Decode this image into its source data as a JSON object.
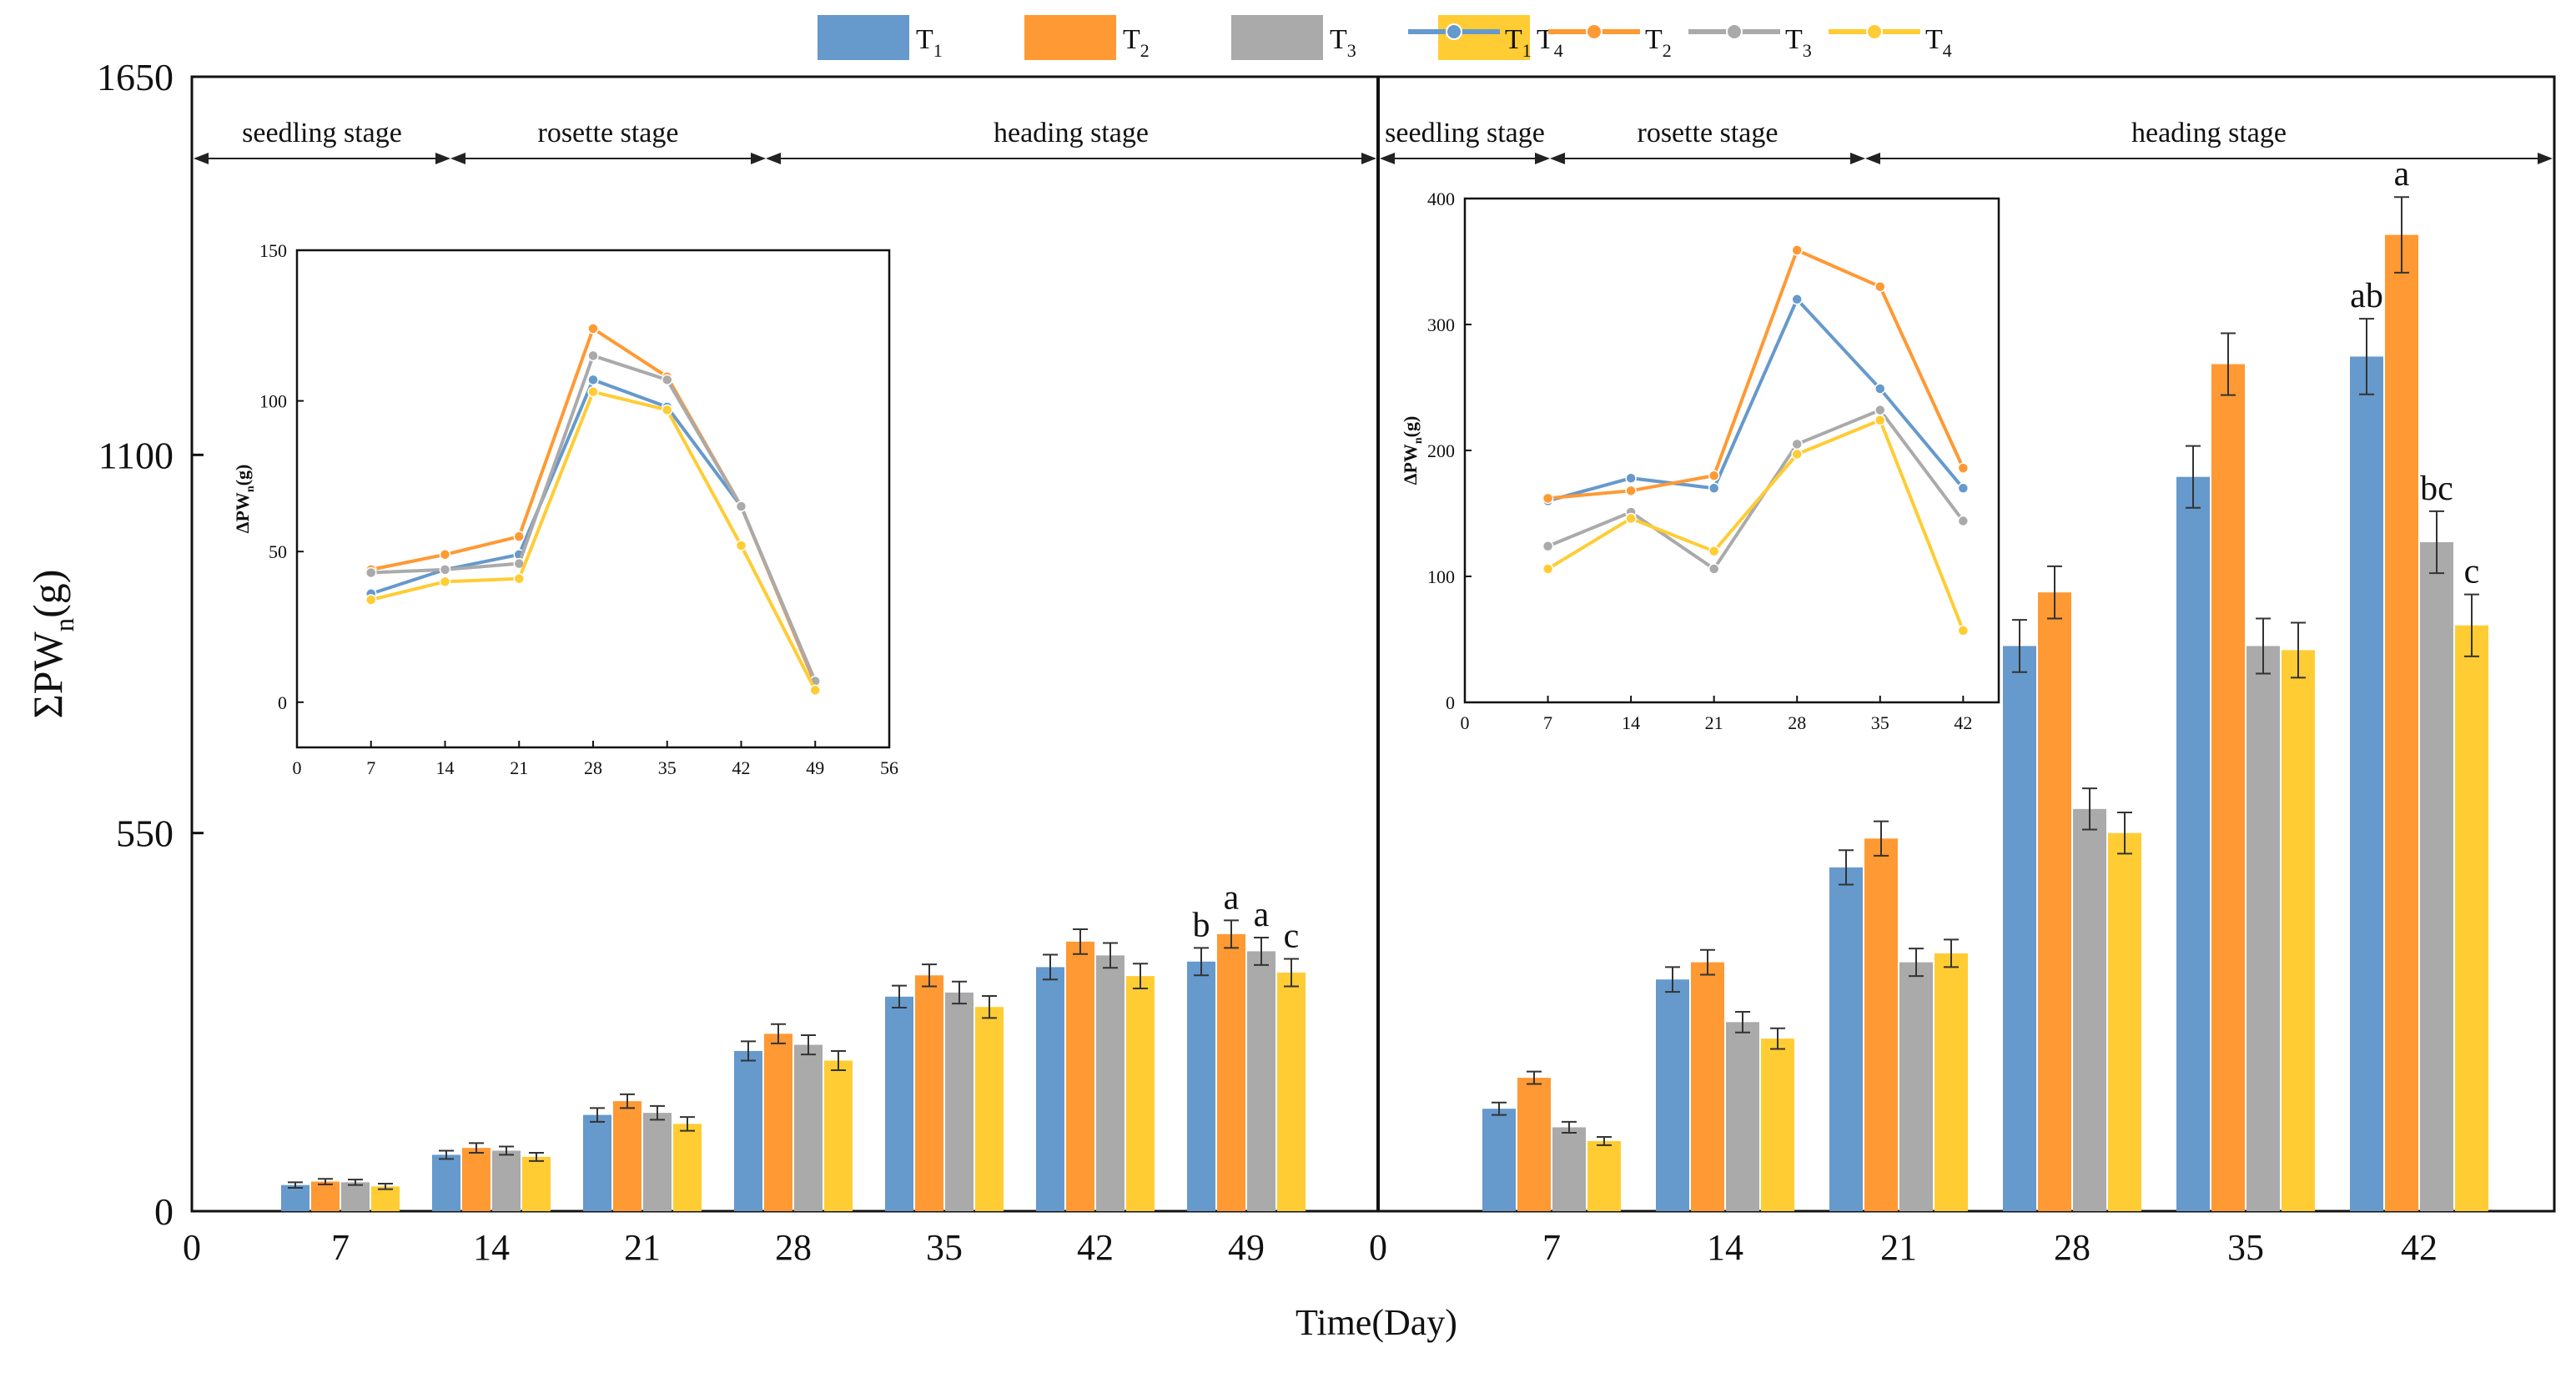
{
  "legend": {
    "bar_labels": [
      "T",
      "T",
      "T",
      "T"
    ],
    "line_labels": [
      "T",
      "T",
      "T",
      "T"
    ],
    "subscripts": [
      "1",
      "2",
      "3",
      "4"
    ]
  },
  "colors": {
    "T1": "#6699CC",
    "T2": "#FF9933",
    "T3": "#AAAAAA",
    "T4": "#FFCC33"
  },
  "chart_data": [
    {
      "type": "bar",
      "panel": "left",
      "ylabel_main": "ΣPW",
      "ylabel_sub": "n",
      "ylabel_tail": "(g)",
      "xlabel": "Time(Day)",
      "ylim": [
        0,
        1650
      ],
      "yticks": [
        "0",
        "550",
        "1100",
        "1650"
      ],
      "xticks": [
        "0",
        "7",
        "14",
        "21",
        "28",
        "35",
        "42",
        "49"
      ],
      "categories": [
        "7",
        "14",
        "21",
        "28",
        "35",
        "42",
        "49"
      ],
      "series": [
        {
          "name": "T1",
          "values": [
            38,
            82,
            140,
            233,
            312,
            355,
            363
          ],
          "errors": [
            4,
            6,
            10,
            14,
            16,
            18,
            20
          ]
        },
        {
          "name": "T2",
          "values": [
            43,
            92,
            160,
            258,
            343,
            392,
            403
          ],
          "errors": [
            4,
            7,
            10,
            14,
            16,
            18,
            20
          ]
        },
        {
          "name": "T3",
          "values": [
            42,
            88,
            143,
            242,
            318,
            372,
            378
          ],
          "errors": [
            4,
            6,
            10,
            14,
            16,
            18,
            20
          ]
        },
        {
          "name": "T4",
          "values": [
            36,
            79,
            127,
            219,
            297,
            342,
            347
          ],
          "errors": [
            4,
            6,
            10,
            14,
            16,
            18,
            20
          ]
        }
      ],
      "significance": {
        "category": "49",
        "letters": [
          "b",
          "a",
          "a",
          "c"
        ]
      },
      "stages": [
        "seedling stage",
        "rosette stage",
        "heading stage"
      ],
      "inset": {
        "type": "line",
        "ylabel_main": "ΔPW",
        "ylabel_sub": "n",
        "ylabel_tail": "(g)",
        "ylim": [
          -15,
          150
        ],
        "yticks": [
          "0",
          "50",
          "100",
          "150"
        ],
        "xlim": [
          0,
          56
        ],
        "xticks": [
          "0",
          "7",
          "14",
          "21",
          "28",
          "35",
          "42",
          "49",
          "56"
        ],
        "x": [
          7,
          14,
          21,
          28,
          35,
          42,
          49
        ],
        "series": [
          {
            "name": "T1",
            "values": [
              36,
              44,
              49,
              107,
              98,
              65,
              6
            ]
          },
          {
            "name": "T2",
            "values": [
              44,
              49,
              55,
              124,
              108,
              65,
              6
            ]
          },
          {
            "name": "T3",
            "values": [
              43,
              44,
              46,
              115,
              107,
              65,
              7
            ]
          },
          {
            "name": "T4",
            "values": [
              34,
              40,
              41,
              103,
              97,
              52,
              4
            ]
          }
        ]
      }
    },
    {
      "type": "bar",
      "panel": "right",
      "ylim": [
        0,
        1650
      ],
      "xticks": [
        "0",
        "7",
        "14",
        "21",
        "28",
        "35",
        "42"
      ],
      "categories": [
        "7",
        "14",
        "21",
        "28",
        "35",
        "42"
      ],
      "series": [
        {
          "name": "T1",
          "values": [
            149,
            337,
            500,
            822,
            1068,
            1243
          ],
          "errors": [
            9,
            18,
            25,
            38,
            45,
            55
          ]
        },
        {
          "name": "T2",
          "values": [
            194,
            362,
            542,
            900,
            1232,
            1420
          ],
          "errors": [
            9,
            18,
            25,
            38,
            45,
            55
          ]
        },
        {
          "name": "T3",
          "values": [
            122,
            275,
            362,
            585,
            822,
            973
          ],
          "errors": [
            8,
            15,
            20,
            30,
            40,
            45
          ]
        },
        {
          "name": "T4",
          "values": [
            102,
            251,
            375,
            550,
            816,
            852
          ],
          "errors": [
            6,
            15,
            20,
            30,
            40,
            45
          ]
        }
      ],
      "significance": {
        "category": "42",
        "letters": [
          "ab",
          "a",
          "bc",
          "c"
        ]
      },
      "stages": [
        "seedling stage",
        "rosette stage",
        "heading stage"
      ],
      "inset": {
        "type": "line",
        "ylabel_main": "ΔPW",
        "ylabel_sub": "n",
        "ylabel_tail": "(g)",
        "ylim": [
          0,
          400
        ],
        "yticks": [
          "0",
          "100",
          "200",
          "300",
          "400"
        ],
        "xlim": [
          0,
          45
        ],
        "xticks": [
          "0",
          "7",
          "14",
          "21",
          "28",
          "35",
          "42"
        ],
        "x": [
          7,
          14,
          21,
          28,
          35,
          42
        ],
        "series": [
          {
            "name": "T1",
            "values": [
              160,
              178,
              170,
              320,
              249,
              170
            ]
          },
          {
            "name": "T2",
            "values": [
              162,
              168,
              180,
              359,
              330,
              186
            ]
          },
          {
            "name": "T3",
            "values": [
              124,
              151,
              106,
              205,
              232,
              144
            ]
          },
          {
            "name": "T4",
            "values": [
              106,
              146,
              120,
              197,
              224,
              57
            ]
          }
        ]
      }
    }
  ]
}
